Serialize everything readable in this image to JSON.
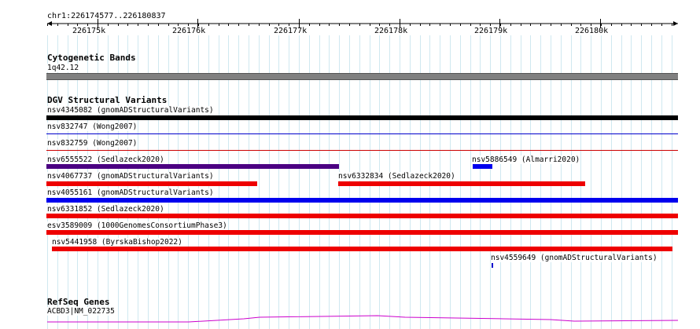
{
  "ruler": {
    "coordinate": "chr1:226174577..226180837",
    "ticks": [
      "226175k",
      "226176k",
      "226177k",
      "226178k",
      "226179k",
      "226180k"
    ]
  },
  "tracks": {
    "cytoband": {
      "title": "Cytogenetic Bands",
      "band_label": "1q42.12"
    },
    "dgv": {
      "title": "DGV Structural Variants",
      "variants": [
        {
          "label": "nsv4345082 (gnomADStructuralVariants)",
          "color": "#000000"
        },
        {
          "label": "nsv832747 (Wong2007)",
          "color": "#0000cc"
        },
        {
          "label": "nsv832759 (Wong2007)",
          "color": "#cc0000"
        },
        {
          "label": "nsv6555522 (Sedlazeck2020)",
          "color": "#4b0082"
        },
        {
          "label": "nsv5886549 (Almarri2020)",
          "color": "#0000ee"
        },
        {
          "label": "nsv4067737 (gnomADStructuralVariants)",
          "color": "#ee0000"
        },
        {
          "label": "nsv6332834 (Sedlazeck2020)",
          "color": "#ee0000"
        },
        {
          "label": "nsv4055161 (gnomADStructuralVariants)",
          "color": "#0000ee"
        },
        {
          "label": "nsv6331852 (Sedlazeck2020)",
          "color": "#ee0000"
        },
        {
          "label": "esv3589009 (1000GenomesConsortiumPhase3)",
          "color": "#ee0000"
        },
        {
          "label": "nsv5441958 (ByrskaBishop2022)",
          "color": "#ee0000"
        },
        {
          "label": "nsv4559649 (gnomADStructuralVariants)",
          "color": "#0000cc"
        }
      ]
    },
    "refseq": {
      "title": "RefSeq Genes",
      "gene_label": "ACBD3|NM_022735"
    }
  },
  "colors": {
    "grid": "#cfe8f0",
    "cytoband": "#808080",
    "gene": "#cc00cc"
  }
}
